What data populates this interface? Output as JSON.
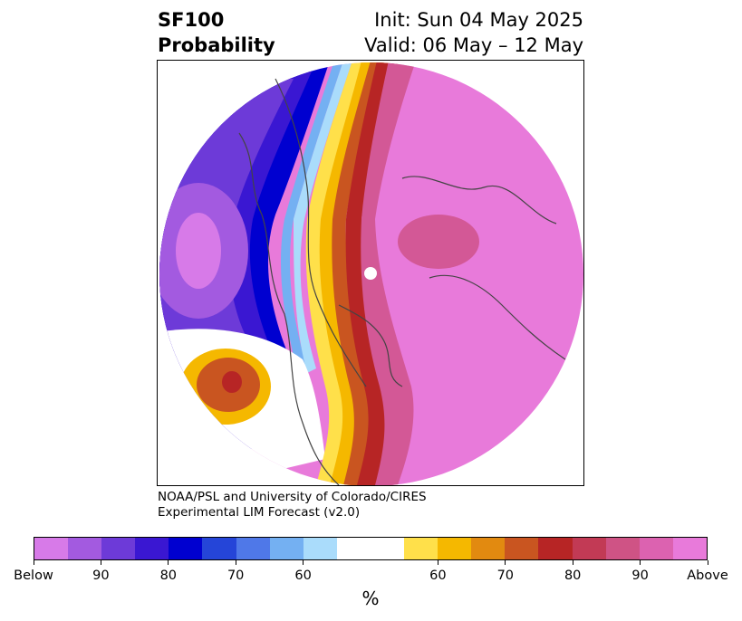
{
  "title": {
    "left_line1": "SF100",
    "left_line2": "Probability",
    "right_line1": "Init: Sun 04 May 2025",
    "right_line2": "Valid: 06 May – 12 May"
  },
  "credit": {
    "line1": "NOAA/PSL and University of Colorado/CIRES",
    "line2": "Experimental LIM Forecast (v2.0)"
  },
  "colorbar": {
    "unit": "%",
    "colors": [
      "#d77ae8",
      "#a35ae0",
      "#6d3ad8",
      "#3a17d2",
      "#0000d0",
      "#2545d8",
      "#4f78e8",
      "#74b0f2",
      "#aadcfb",
      "#ffffff",
      "#ffffff",
      "#ffe04a",
      "#f5b800",
      "#e28a10",
      "#c95520",
      "#b72525",
      "#c23a55",
      "#cf5385",
      "#dc62b0",
      "#e87ada"
    ],
    "ticks": [
      "Below",
      "90",
      "80",
      "70",
      "60",
      "60",
      "70",
      "80",
      "90",
      "Above"
    ],
    "tick_positions": [
      0,
      2,
      4,
      6,
      8,
      12,
      14,
      16,
      18,
      20
    ],
    "segments": 20
  },
  "map": {
    "colors": {
      "above": "#e87ada",
      "above_90": "#d35896",
      "above_80": "#b72525",
      "above_70": "#c95520",
      "above_60": "#f5b800",
      "above_50": "#ffe04a",
      "below_90": "#0000d0",
      "below_80": "#3a17d2",
      "below_70": "#6d3ad8",
      "below_60": "#a35ae0",
      "below_below": "#d77ae8",
      "below_light": "#aadcfb",
      "below_mid": "#74b0f2",
      "land_outline": "#444444"
    }
  }
}
